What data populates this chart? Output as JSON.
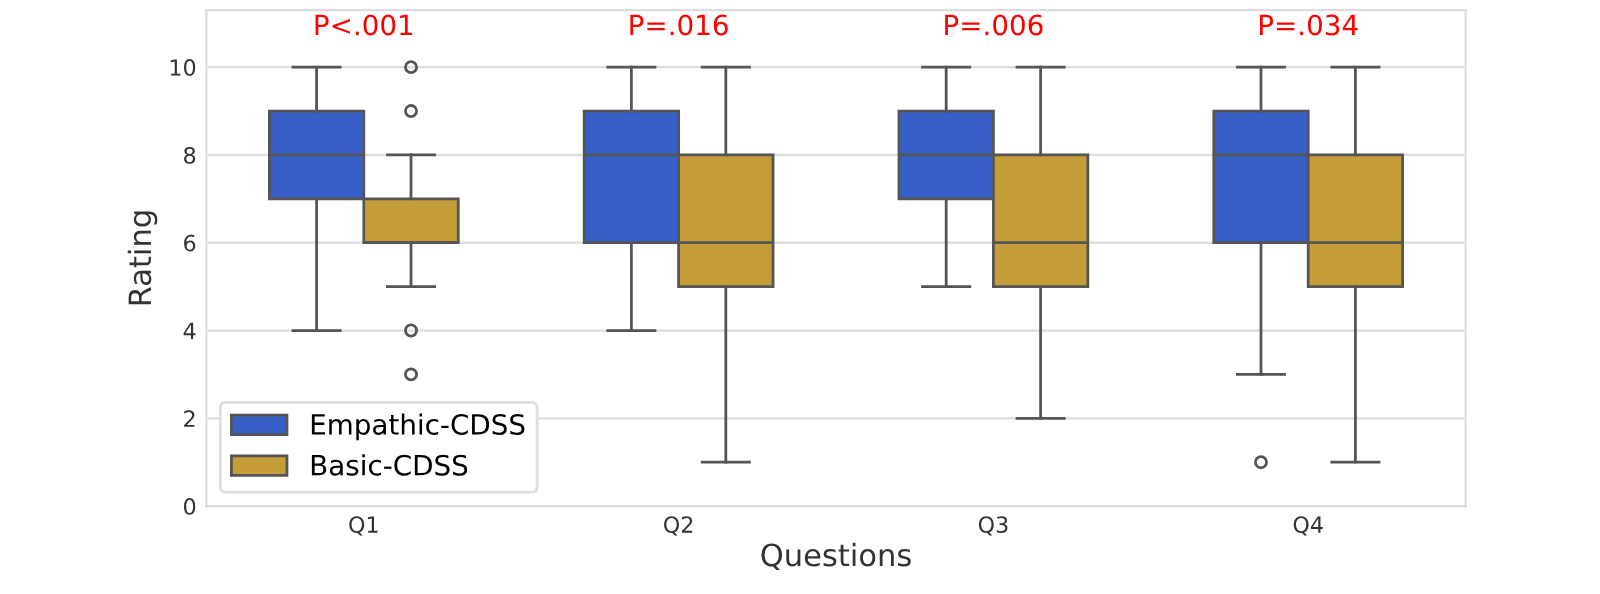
{
  "chart_data": {
    "type": "box",
    "xlabel": "Questions",
    "ylabel": "Rating",
    "categories": [
      "Q1",
      "Q2",
      "Q3",
      "Q4"
    ],
    "ylim": [
      0,
      11.3
    ],
    "yticks": [
      0,
      2,
      4,
      6,
      8,
      10
    ],
    "grid": "y",
    "legend": "bottom left",
    "annotations": [
      "P<.001",
      "P=.016",
      "P=.006",
      "P=.034"
    ],
    "series": [
      {
        "name": "Empathic-CDSS",
        "color": "#3660c8",
        "boxes": [
          {
            "low": 4,
            "q1": 7,
            "median": 8,
            "q3": 9,
            "high": 10
          },
          {
            "low": 4,
            "q1": 6,
            "median": 8,
            "q3": 9,
            "high": 10
          },
          {
            "low": 5,
            "q1": 7,
            "median": 8,
            "q3": 9,
            "high": 10
          },
          {
            "low": 3,
            "q1": 6,
            "median": 8,
            "q3": 9,
            "high": 10,
            "outliers": [
              1
            ]
          }
        ]
      },
      {
        "name": "Basic-CDSS",
        "color": "#c49c38",
        "boxes": [
          {
            "low": 5,
            "q1": 6,
            "median": 6,
            "q3": 7,
            "high": 8,
            "outliers": [
              3,
              4,
              9,
              10
            ]
          },
          {
            "low": 1,
            "q1": 5,
            "median": 6,
            "q3": 8,
            "high": 10
          },
          {
            "low": 2,
            "q1": 5,
            "median": 6,
            "q3": 8,
            "high": 10
          },
          {
            "low": 1,
            "q1": 5,
            "median": 6,
            "q3": 8,
            "high": 10
          }
        ]
      }
    ]
  }
}
